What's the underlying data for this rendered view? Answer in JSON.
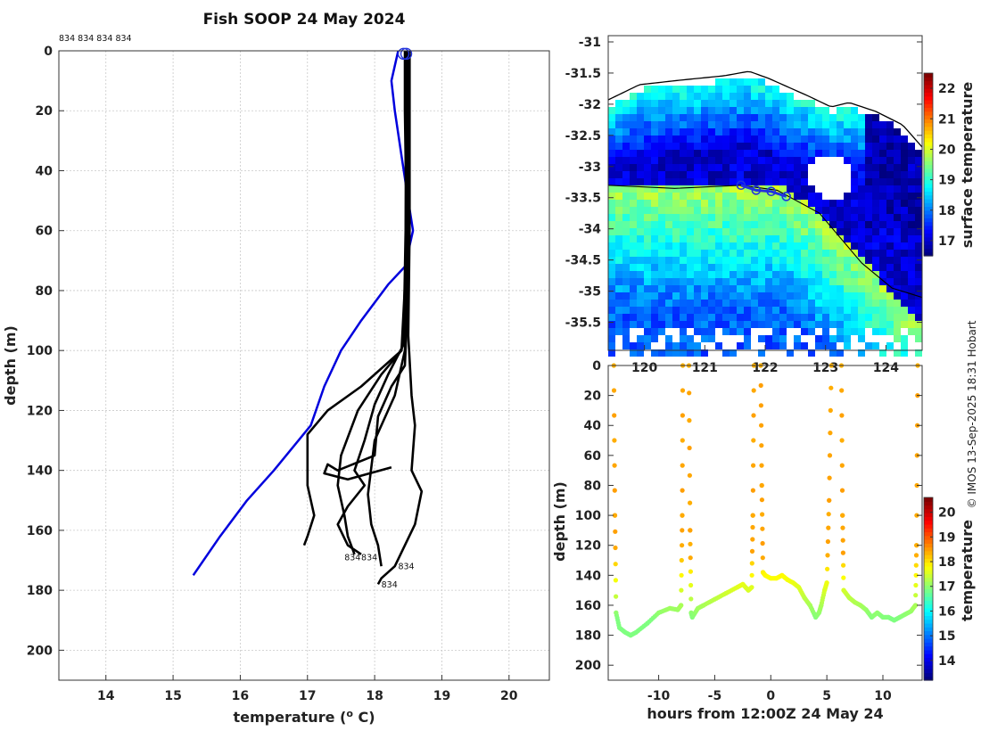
{
  "title": "Fish SOOP 24 May 2024",
  "top_label": "834 834 834 834",
  "credit": "© IMOS 13-Sep-2025 18:31 Hobart",
  "colors": {
    "profile": "#000000",
    "climatology": "#0000dd",
    "marker": "#2233dd",
    "coast": "#000000"
  },
  "chart_data": [
    {
      "id": "profile",
      "type": "line",
      "title": "Fish SOOP 24 May 2024",
      "xlabel": "temperature (",
      "xlabel_sup": "o",
      "xlabel_end": " C)",
      "ylabel": "depth (m)",
      "xlim": [
        13.3,
        20.6
      ],
      "ylim": [
        210,
        0
      ],
      "xticks": [
        14,
        15,
        16,
        17,
        18,
        19,
        20
      ],
      "yticks": [
        0,
        20,
        40,
        60,
        80,
        100,
        120,
        140,
        160,
        180,
        200
      ],
      "grid": true,
      "annotations": [
        "834",
        "834",
        "834",
        "834"
      ],
      "series": [
        {
          "name": "climatology",
          "color": "#0000dd",
          "points": [
            [
              18.35,
              0
            ],
            [
              18.3,
              5
            ],
            [
              18.25,
              10
            ],
            [
              18.3,
              20
            ],
            [
              18.4,
              35
            ],
            [
              18.5,
              50
            ],
            [
              18.57,
              60
            ],
            [
              18.45,
              72
            ],
            [
              18.2,
              78
            ],
            [
              17.8,
              90
            ],
            [
              17.5,
              100
            ],
            [
              17.25,
              112
            ],
            [
              17.05,
              125
            ],
            [
              16.5,
              140
            ],
            [
              16.1,
              150
            ],
            [
              15.7,
              162
            ],
            [
              15.3,
              175
            ]
          ]
        },
        {
          "name": "profile-1",
          "color": "#000000",
          "points": [
            [
              18.45,
              0
            ],
            [
              18.45,
              20
            ],
            [
              18.47,
              50
            ],
            [
              18.45,
              90
            ],
            [
              18.4,
              100
            ],
            [
              18.1,
              108
            ],
            [
              17.75,
              120
            ],
            [
              17.5,
              135
            ],
            [
              17.45,
              145
            ],
            [
              17.55,
              155
            ],
            [
              17.6,
              162
            ],
            [
              17.7,
              168
            ]
          ]
        },
        {
          "name": "profile-2",
          "color": "#000000",
          "points": [
            [
              18.5,
              0
            ],
            [
              18.5,
              40
            ],
            [
              18.48,
              80
            ],
            [
              18.45,
              100
            ],
            [
              18.3,
              115
            ],
            [
              18.0,
              130
            ],
            [
              17.9,
              148
            ],
            [
              17.95,
              158
            ],
            [
              18.05,
              165
            ],
            [
              18.1,
              172
            ]
          ]
        },
        {
          "name": "profile-3",
          "color": "#000000",
          "points": [
            [
              18.52,
              0
            ],
            [
              18.52,
              60
            ],
            [
              18.5,
              95
            ],
            [
              18.55,
              115
            ],
            [
              18.6,
              125
            ],
            [
              18.55,
              140
            ],
            [
              18.7,
              147
            ],
            [
              18.6,
              158
            ],
            [
              18.45,
              165
            ],
            [
              18.3,
              172
            ],
            [
              18.1,
              176
            ],
            [
              18.05,
              178
            ]
          ]
        },
        {
          "name": "profile-4",
          "color": "#000000",
          "points": [
            [
              18.48,
              0
            ],
            [
              18.47,
              70
            ],
            [
              18.4,
              100
            ],
            [
              17.8,
              112
            ],
            [
              17.3,
              120
            ],
            [
              17.0,
              128
            ],
            [
              17.0,
              145
            ],
            [
              17.1,
              155
            ],
            [
              17.0,
              162
            ],
            [
              16.95,
              165
            ]
          ]
        },
        {
          "name": "profile-5",
          "color": "#000000",
          "points": [
            [
              18.47,
              0
            ],
            [
              18.46,
              60
            ],
            [
              18.43,
              98
            ],
            [
              18.2,
              108
            ],
            [
              18.0,
              118
            ],
            [
              17.85,
              130
            ],
            [
              17.7,
              140
            ],
            [
              17.85,
              145
            ],
            [
              17.6,
              152
            ],
            [
              17.45,
              158
            ],
            [
              17.6,
              165
            ],
            [
              17.8,
              168
            ]
          ]
        },
        {
          "name": "profile-6",
          "color": "#000000",
          "points": [
            [
              18.5,
              0
            ],
            [
              18.49,
              85
            ],
            [
              18.45,
              105
            ],
            [
              18.25,
              112
            ],
            [
              18.05,
              122
            ],
            [
              18.0,
              135
            ],
            [
              17.45,
              140
            ],
            [
              17.3,
              138
            ],
            [
              17.25,
              141
            ],
            [
              17.6,
              143
            ],
            [
              18.25,
              139
            ]
          ]
        }
      ],
      "markers": [
        {
          "name": "surface-start",
          "x": 18.43,
          "y": 1
        },
        {
          "name": "surface-end",
          "x": 18.47,
          "y": 1
        }
      ]
    },
    {
      "id": "map",
      "type": "heatmap",
      "xlabel": "",
      "ylabel": "",
      "xlim": [
        119.4,
        124.6
      ],
      "ylim": [
        -35.95,
        -30.9
      ],
      "xticks": [
        120,
        121,
        122,
        123,
        124
      ],
      "yticks": [
        -31,
        -31.5,
        -32,
        -32.5,
        -33,
        -33.5,
        -34,
        -34.5,
        -35,
        -35.5
      ],
      "colorbar": {
        "label": "surface temperature",
        "range": [
          16.5,
          22.5
        ],
        "ticks": [
          17,
          18,
          19,
          20,
          21,
          22
        ]
      },
      "track": [
        [
          121.6,
          -33.3
        ],
        [
          121.85,
          -33.38
        ],
        [
          122.1,
          -33.4
        ],
        [
          122.35,
          -33.48
        ]
      ],
      "shelf_line": [
        [
          119.4,
          -33.3
        ],
        [
          120.5,
          -33.35
        ],
        [
          121.6,
          -33.3
        ],
        [
          122.2,
          -33.38
        ],
        [
          122.9,
          -33.75
        ],
        [
          123.6,
          -34.55
        ],
        [
          124.1,
          -34.95
        ],
        [
          124.6,
          -35.1
        ]
      ]
    },
    {
      "id": "section",
      "type": "scatter",
      "xlabel": "hours from 12:00Z 24 May 24",
      "ylabel": "depth (m)",
      "xlim": [
        -14.5,
        13.5
      ],
      "ylim": [
        210,
        0
      ],
      "xticks": [
        -10,
        -5,
        0,
        5,
        10
      ],
      "yticks": [
        0,
        20,
        40,
        60,
        80,
        100,
        120,
        140,
        160,
        180,
        200
      ],
      "colorbar": {
        "label": "temperature",
        "range": [
          13.2,
          20.6
        ],
        "ticks": [
          14,
          15,
          16,
          17,
          18,
          19,
          20
        ]
      },
      "casts": [
        {
          "t": [
            -14.0,
            -13.9,
            -13.8,
            -13.5,
            -13.0,
            -12.5,
            -12.0,
            -11.0,
            -10.0,
            -9.0,
            -8.3,
            -8.0,
            -7.9,
            -7.85
          ],
          "d": [
            0,
            100,
            165,
            175,
            178,
            180,
            178,
            172,
            165,
            162,
            163,
            160,
            100,
            0
          ]
        },
        {
          "t": [
            -7.3,
            -7.2,
            -7.1,
            -7.0,
            -6.5,
            -6.0,
            -5.0,
            -4.0,
            -3.0,
            -2.5,
            -2.0,
            -1.7,
            -1.6,
            -1.5
          ],
          "d": [
            0,
            110,
            165,
            168,
            162,
            160,
            156,
            152,
            148,
            146,
            150,
            148,
            100,
            0
          ]
        },
        {
          "t": [
            -0.9,
            -0.8,
            -0.7,
            -0.5,
            0.0,
            0.5,
            1.0,
            1.5,
            2.0,
            2.5,
            3.0,
            3.5,
            4.0,
            4.3,
            4.5,
            4.8,
            5.0,
            5.2,
            5.4
          ],
          "d": [
            0,
            80,
            138,
            140,
            142,
            142,
            140,
            143,
            145,
            148,
            155,
            160,
            168,
            165,
            160,
            150,
            145,
            90,
            0
          ]
        },
        {
          "t": [
            6.3,
            6.4,
            6.5,
            7.0,
            7.5,
            8.0,
            8.5,
            9.0,
            9.5,
            10.0,
            10.5,
            11.0,
            11.5,
            12.0,
            12.5,
            12.9,
            13.0,
            13.1
          ],
          "d": [
            0,
            100,
            150,
            155,
            158,
            160,
            163,
            168,
            165,
            168,
            168,
            170,
            168,
            166,
            164,
            160,
            120,
            0
          ]
        }
      ]
    }
  ]
}
